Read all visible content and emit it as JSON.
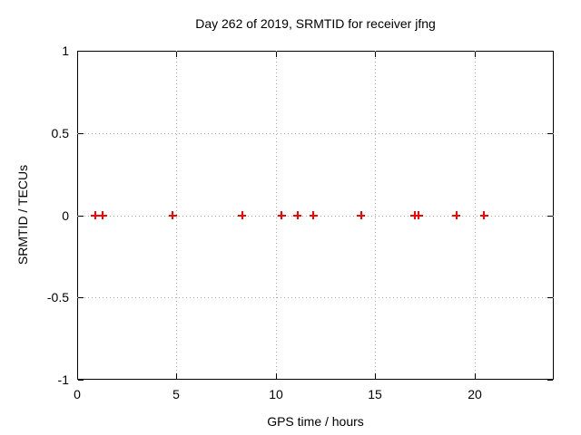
{
  "figure": {
    "background_color": "#ffffff",
    "border_color": "#000000",
    "grid_color": "#a8a8a8"
  },
  "chart_data": {
    "type": "scatter",
    "title": "Day 262 of 2019, SRMTID for receiver jfng",
    "xlabel": "GPS time / hours",
    "ylabel": "SRMTID / TECUs",
    "xlim": [
      0,
      24
    ],
    "ylim": [
      -1,
      1
    ],
    "grid": true,
    "legend": "none",
    "xticks": {
      "values": [
        0,
        5,
        10,
        15,
        20
      ],
      "labels": [
        "0",
        "5",
        "10",
        "15",
        "20"
      ]
    },
    "yticks": {
      "values": [
        -1,
        -0.5,
        0,
        0.5,
        1
      ],
      "labels": [
        "-1",
        "-0.5",
        "0",
        "0.5",
        "1"
      ]
    },
    "series": [
      {
        "name": "SRMTID",
        "marker": "plus",
        "color": "#ff0000",
        "x": [
          0.9,
          1.3,
          4.8,
          8.3,
          10.3,
          11.1,
          11.9,
          14.3,
          17.0,
          17.2,
          19.1,
          20.5
        ],
        "y": [
          0,
          0,
          0,
          0,
          0,
          0,
          0,
          0,
          0,
          0,
          0,
          0
        ]
      }
    ]
  }
}
